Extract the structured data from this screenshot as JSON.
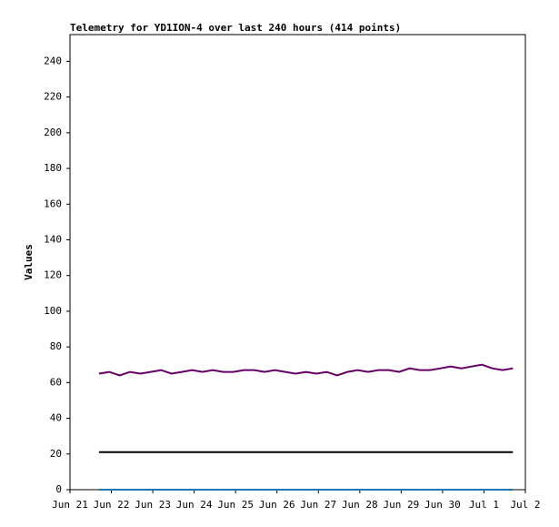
{
  "chart_data": {
    "type": "line",
    "title": "Telemetry for YD1ION-4 over last 240 hours (414 points)",
    "y_label": "Values",
    "x": [
      0.7,
      0.95,
      1.2,
      1.45,
      1.7,
      1.95,
      2.2,
      2.45,
      2.7,
      2.95,
      3.2,
      3.45,
      3.7,
      3.95,
      4.2,
      4.45,
      4.7,
      4.95,
      5.2,
      5.45,
      5.7,
      5.95,
      6.2,
      6.45,
      6.7,
      6.95,
      7.2,
      7.45,
      7.7,
      7.95,
      8.2,
      8.45,
      8.7,
      8.95,
      9.2,
      9.45,
      9.7,
      9.95,
      10.2,
      10.45,
      10.7
    ],
    "series": [
      {
        "color": "#660066",
        "values": [
          65,
          66,
          64,
          66,
          65,
          66,
          67,
          65,
          66,
          67,
          66,
          67,
          66,
          66,
          67,
          67,
          66,
          67,
          66,
          65,
          66,
          65,
          66,
          64,
          66,
          67,
          66,
          67,
          67,
          66,
          68,
          67,
          67,
          68,
          69,
          68,
          69,
          70,
          68,
          67,
          68
        ]
      },
      {
        "color": "#000000",
        "values": [
          21,
          21,
          21,
          21,
          21,
          21,
          21,
          21,
          21,
          21,
          21,
          21,
          21,
          21,
          21,
          21,
          21,
          21,
          21,
          21,
          21,
          21,
          21,
          21,
          21,
          21,
          21,
          21,
          21,
          21,
          21,
          21,
          21,
          21,
          21,
          21,
          21,
          21,
          21,
          21,
          21
        ]
      },
      {
        "color": "#1f77b4",
        "values": [
          0,
          0,
          0,
          0,
          0,
          0,
          0,
          0,
          0,
          0,
          0,
          0,
          0,
          0,
          0,
          0,
          0,
          0,
          0,
          0,
          0,
          0,
          0,
          0,
          0,
          0,
          0,
          0,
          0,
          0,
          0,
          0,
          0,
          0,
          0,
          0,
          0,
          0,
          0,
          0,
          0
        ]
      }
    ],
    "xlim": [
      0,
      11
    ],
    "xticks": [
      {
        "value": 0,
        "label": "Jun 21"
      },
      {
        "value": 1,
        "label": "Jun 22"
      },
      {
        "value": 2,
        "label": "Jun 23"
      },
      {
        "value": 3,
        "label": "Jun 24"
      },
      {
        "value": 4,
        "label": "Jun 25"
      },
      {
        "value": 5,
        "label": "Jun 26"
      },
      {
        "value": 6,
        "label": "Jun 27"
      },
      {
        "value": 7,
        "label": "Jun 28"
      },
      {
        "value": 8,
        "label": "Jun 29"
      },
      {
        "value": 9,
        "label": "Jun 30"
      },
      {
        "value": 10,
        "label": "Jul 1"
      },
      {
        "value": 11,
        "label": "Jul 2"
      }
    ],
    "ylim": [
      0,
      255
    ],
    "yticks": [
      0,
      20,
      40,
      60,
      80,
      100,
      120,
      140,
      160,
      180,
      200,
      220,
      240
    ],
    "grid": false
  }
}
